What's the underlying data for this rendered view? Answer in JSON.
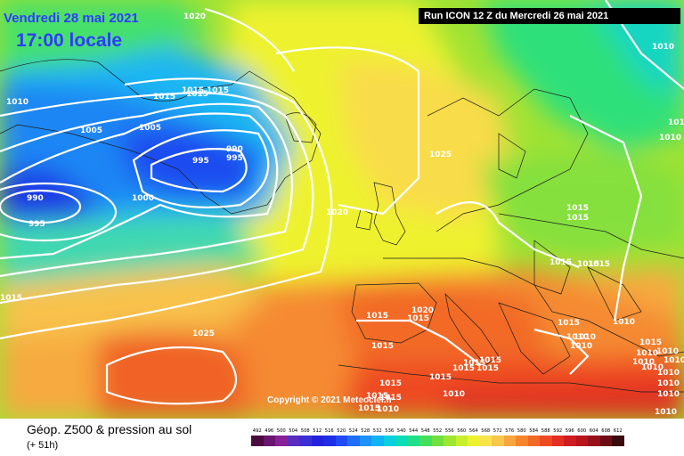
{
  "header": {
    "date": "Vendredi 28 mai 2021",
    "time": "17:00 locale",
    "run": "Run ICON 12 Z du Mercredi 26 mai 2021"
  },
  "copyright": "Copyright © 2021 Meteociel.fr",
  "footer": {
    "title": "Géop. Z500 & pression au sol",
    "subtitle": "(+ 51h)"
  },
  "isobar_labels": [
    "1020",
    "1010",
    "1010",
    "1005",
    "1005",
    "1015",
    "1015",
    "1015",
    "1015",
    "990",
    "995",
    "995",
    "990",
    "995",
    "1000",
    "1020",
    "1025",
    "1010",
    "1010",
    "1015",
    "1015",
    "1015",
    "1015",
    "1015",
    "1015",
    "1020",
    "1015",
    "1015",
    "1015",
    "1025",
    "1015",
    "1015",
    "1015",
    "1010",
    "1015",
    "1010",
    "1010",
    "1010",
    "1010",
    "1010",
    "1015",
    "1010",
    "1010",
    "1010",
    "1015",
    "1010",
    "1015",
    "1015",
    "1010",
    "1015",
    "1015",
    "1010",
    "1015",
    "1010",
    "1010",
    "1010"
  ],
  "legend": {
    "labels": [
      "492",
      "496",
      "500",
      "504",
      "508",
      "512",
      "516",
      "520",
      "524",
      "528",
      "532",
      "536",
      "540",
      "544",
      "548",
      "552",
      "556",
      "560",
      "564",
      "568",
      "572",
      "576",
      "580",
      "584",
      "588",
      "592",
      "596",
      "600",
      "604",
      "608",
      "612"
    ],
    "colors": [
      "#4a0b3f",
      "#6a1570",
      "#86219a",
      "#5a2cc0",
      "#3a2ed4",
      "#2222dc",
      "#1c2ee6",
      "#1e4cf0",
      "#1e6ff6",
      "#1a92f8",
      "#10b4f4",
      "#0ccfe0",
      "#0ddcb8",
      "#1ee08a",
      "#43e05c",
      "#70e040",
      "#9ee630",
      "#c8ef2c",
      "#eef22e",
      "#fae34a",
      "#f7c64a",
      "#f6a63c",
      "#f5862e",
      "#f26826",
      "#ee4a22",
      "#e52e22",
      "#d01c20",
      "#b8141c",
      "#96101a",
      "#6c0c14",
      "#3a0a0c"
    ]
  }
}
